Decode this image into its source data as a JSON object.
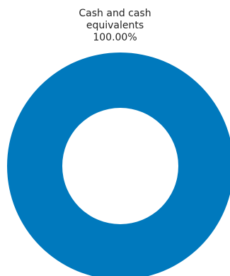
{
  "chart_data": {
    "type": "pie",
    "categories": [
      "Cash and cash equivalents"
    ],
    "values": [
      100.0
    ],
    "value_labels": [
      "100.00%"
    ],
    "colors": [
      "#0079bd"
    ],
    "label_lines": [
      "Cash and cash",
      "equivalents"
    ],
    "donut": true
  }
}
